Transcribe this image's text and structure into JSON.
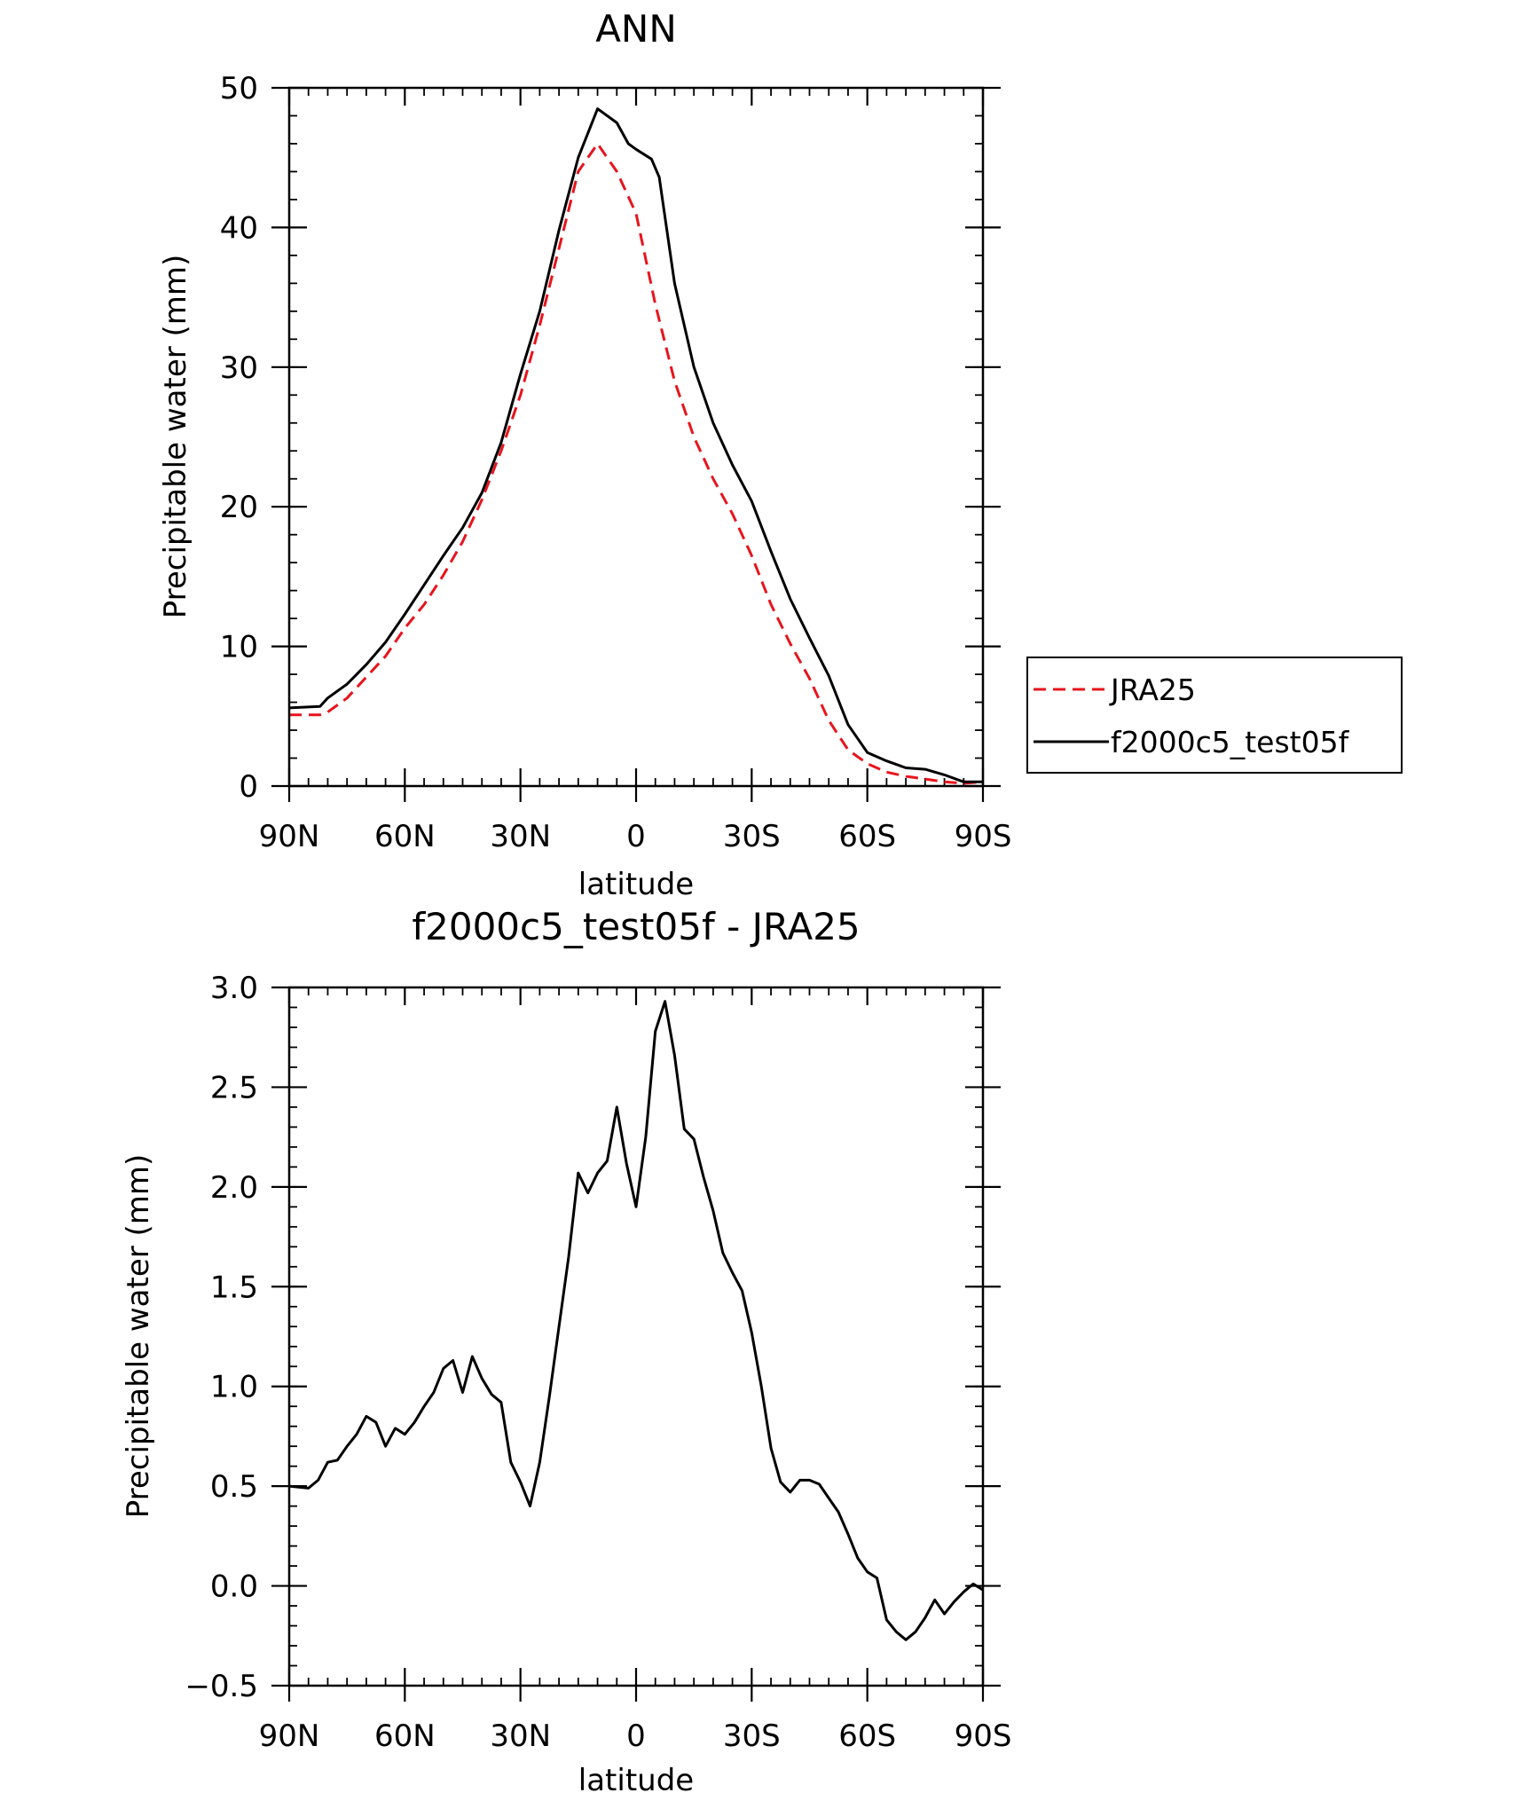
{
  "chart_data": [
    {
      "type": "line",
      "title": "ANN",
      "xlabel": "latitude",
      "ylabel": "Precipitable water (mm)",
      "xlim": [
        90,
        -90
      ],
      "ylim": [
        0,
        50
      ],
      "xticks": [
        90,
        60,
        30,
        0,
        -30,
        -60,
        -90
      ],
      "xtick_labels": [
        "90N",
        "60N",
        "30N",
        "0",
        "30S",
        "60S",
        "90S"
      ],
      "yticks": [
        0,
        10,
        20,
        30,
        40,
        50
      ],
      "ytick_labels": [
        "0",
        "10",
        "20",
        "30",
        "40",
        "50"
      ],
      "grid": false,
      "legend_position": "right",
      "series": [
        {
          "name": "JRA25",
          "color": "#e8141c",
          "style": "dashed",
          "x": [
            90,
            82,
            80,
            75,
            70,
            65,
            60,
            55,
            50,
            45,
            40,
            35,
            30,
            25,
            20,
            15,
            10,
            5,
            0,
            -5,
            -10,
            -15,
            -20,
            -25,
            -30,
            -35,
            -40,
            -45,
            -50,
            -55,
            -60,
            -65,
            -70,
            -75,
            -80,
            -85,
            -90
          ],
          "y": [
            5.1,
            5.1,
            5.3,
            6.3,
            7.8,
            9.3,
            11.3,
            13.0,
            15.1,
            17.5,
            20.5,
            24.0,
            28.0,
            33.0,
            38.5,
            44.0,
            46.0,
            44.0,
            41.0,
            34.5,
            29.0,
            25.0,
            22.0,
            19.5,
            16.5,
            13.0,
            10.2,
            7.7,
            4.7,
            2.6,
            1.6,
            1.0,
            0.7,
            0.5,
            0.3,
            0.2,
            0.3
          ]
        },
        {
          "name": "f2000c5_test05f",
          "color": "#000000",
          "style": "solid",
          "x": [
            90,
            82,
            80,
            75,
            70,
            65,
            60,
            55,
            50,
            45,
            40,
            35,
            30,
            25,
            20,
            15,
            10,
            5,
            2,
            0,
            -4,
            -6,
            -10,
            -15,
            -20,
            -25,
            -30,
            -35,
            -40,
            -45,
            -50,
            -55,
            -60,
            -65,
            -70,
            -75,
            -80,
            -85,
            -90
          ],
          "y": [
            5.6,
            5.7,
            6.3,
            7.3,
            8.7,
            10.3,
            12.3,
            14.4,
            16.5,
            18.5,
            21.0,
            24.6,
            29.5,
            34.0,
            39.8,
            45.0,
            48.5,
            47.5,
            46.0,
            45.6,
            44.9,
            43.6,
            36.0,
            30.0,
            26.0,
            23.0,
            20.4,
            16.8,
            13.4,
            10.6,
            7.9,
            4.4,
            2.4,
            1.8,
            1.3,
            1.2,
            0.8,
            0.3,
            0.3
          ]
        }
      ]
    },
    {
      "type": "line",
      "title": "f2000c5_test05f - JRA25",
      "xlabel": "latitude",
      "ylabel": "Precipitable water (mm)",
      "xlim": [
        90,
        -90
      ],
      "ylim": [
        -0.5,
        3.0
      ],
      "xticks": [
        90,
        60,
        30,
        0,
        -30,
        -60,
        -90
      ],
      "xtick_labels": [
        "90N",
        "60N",
        "30N",
        "0",
        "30S",
        "60S",
        "90S"
      ],
      "yticks": [
        -0.5,
        0.0,
        0.5,
        1.0,
        1.5,
        2.0,
        2.5,
        3.0
      ],
      "ytick_labels": [
        "−0.5",
        "0.0",
        "0.5",
        "1.0",
        "1.5",
        "2.0",
        "2.5",
        "3.0"
      ],
      "grid": false,
      "series": [
        {
          "color": "#000000",
          "style": "solid",
          "x": [
            90,
            85,
            82.5,
            80,
            77.5,
            75,
            72.5,
            70,
            67.5,
            65,
            62.5,
            60,
            57.5,
            55,
            52.5,
            50,
            47.5,
            45,
            42.5,
            40,
            37.5,
            35,
            32.5,
            30,
            27.5,
            25,
            22.5,
            20,
            17.5,
            15,
            12.5,
            10,
            7.5,
            5,
            2.5,
            0,
            -2.5,
            -5,
            -7.5,
            -10,
            -12.5,
            -15,
            -17.5,
            -20,
            -22.5,
            -25,
            -27.5,
            -30,
            -32.5,
            -35,
            -37.5,
            -40,
            -42.5,
            -45,
            -47.5,
            -50,
            -52.5,
            -55,
            -57.5,
            -60,
            -62.5,
            -65,
            -67.5,
            -70,
            -72.5,
            -75,
            -77.5,
            -80,
            -82.5,
            -85,
            -87.5,
            -90
          ],
          "y": [
            0.5,
            0.49,
            0.53,
            0.62,
            0.63,
            0.7,
            0.76,
            0.85,
            0.82,
            0.7,
            0.79,
            0.76,
            0.82,
            0.9,
            0.97,
            1.09,
            1.13,
            0.97,
            1.15,
            1.04,
            0.96,
            0.92,
            0.62,
            0.52,
            0.4,
            0.62,
            0.95,
            1.3,
            1.65,
            2.07,
            1.97,
            2.07,
            2.13,
            2.4,
            2.12,
            1.9,
            2.25,
            2.78,
            2.93,
            2.66,
            2.29,
            2.24,
            2.05,
            1.88,
            1.67,
            1.57,
            1.48,
            1.27,
            1.0,
            0.69,
            0.52,
            0.47,
            0.53,
            0.53,
            0.51,
            0.44,
            0.37,
            0.26,
            0.14,
            0.07,
            0.04,
            -0.17,
            -0.23,
            -0.27,
            -0.23,
            -0.16,
            -0.07,
            -0.14,
            -0.08,
            -0.03,
            0.01,
            -0.02
          ]
        }
      ]
    }
  ]
}
